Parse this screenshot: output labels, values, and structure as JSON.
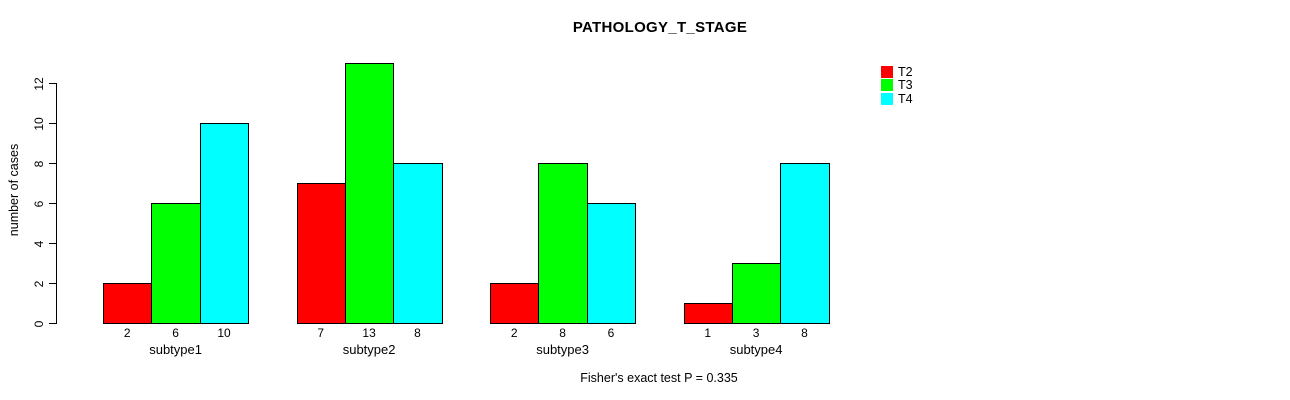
{
  "page": {
    "background": "#FFFFFF",
    "text_color": "#000000"
  },
  "chart_data": {
    "type": "bar",
    "title": "PATHOLOGY_T_STAGE",
    "ylabel": "number of cases",
    "xlabel": "",
    "caption": "Fisher's exact test P = 0.335",
    "categories": [
      "subtype1",
      "subtype2",
      "subtype3",
      "subtype4"
    ],
    "series": [
      {
        "name": "T2",
        "color": "#FF0000",
        "values": [
          2,
          7,
          2,
          1
        ]
      },
      {
        "name": "T3",
        "color": "#00FF00",
        "values": [
          6,
          13,
          8,
          3
        ]
      },
      {
        "name": "T4",
        "color": "#00FFFF",
        "values": [
          10,
          8,
          6,
          8
        ]
      }
    ],
    "bar_value_labels_visible": true,
    "ylim": [
      0,
      13
    ],
    "yticks": [
      0,
      2,
      4,
      6,
      8,
      10,
      12
    ],
    "grid": false,
    "legend_position": "top-right",
    "bar_border_color": "#000000"
  }
}
